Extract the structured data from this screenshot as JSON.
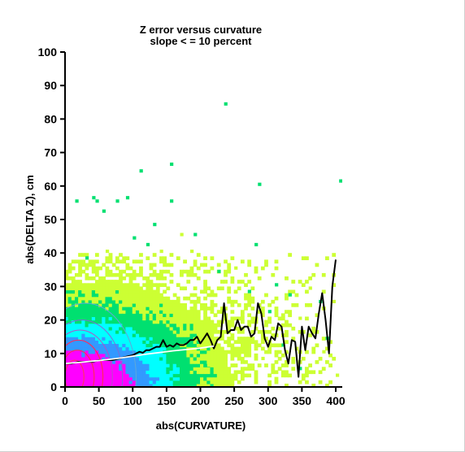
{
  "chart_data": {
    "type": "heatmap",
    "title": "Z error versus curvature",
    "subtitle": "slope < = 10 percent",
    "xlabel": "abs(CURVATURE)",
    "ylabel": "abs(DELTA Z), cm",
    "xlim": [
      0,
      400
    ],
    "ylim": [
      0,
      100
    ],
    "x_ticks": [
      "0",
      "50",
      "100",
      "150",
      "200",
      "250",
      "300",
      "350",
      "400"
    ],
    "y_ticks": [
      "0",
      "10",
      "20",
      "30",
      "40",
      "50",
      "60",
      "70",
      "80",
      "90",
      "100"
    ],
    "grid": false,
    "colormap": [
      "#ff00ff",
      "#3399ff",
      "#00ffff",
      "#00e070",
      "#ccff33"
    ],
    "series": [
      {
        "type": "line",
        "color": "#000000",
        "x": [
          0,
          10,
          20,
          30,
          40,
          50,
          60,
          70,
          80,
          90,
          100,
          105,
          110,
          115,
          120,
          125,
          130,
          135,
          140,
          145,
          150,
          155,
          160,
          165,
          170,
          175,
          180,
          185,
          190,
          195,
          200,
          205,
          210,
          215,
          220,
          225,
          230,
          235,
          240,
          245,
          250,
          255,
          260,
          265,
          270,
          275,
          280,
          285,
          290,
          295,
          300,
          305,
          310,
          315,
          320,
          325,
          330,
          335,
          340,
          345,
          350,
          355,
          360,
          365,
          370,
          375,
          380,
          385,
          390,
          395,
          400
        ],
        "values": [
          7,
          7,
          7.5,
          7.5,
          7.5,
          8,
          8,
          8,
          8.5,
          9,
          9.5,
          10,
          10.5,
          10.2,
          11,
          11,
          11.5,
          12,
          12,
          14,
          12,
          12.5,
          12,
          13,
          12.5,
          12.5,
          13,
          14,
          14,
          15,
          13,
          14.5,
          16,
          14,
          11.5,
          14,
          15,
          25,
          16,
          17,
          17,
          20,
          17,
          18,
          18,
          15,
          16,
          25,
          22,
          14.5,
          12,
          15,
          14,
          19,
          18,
          11,
          7,
          14,
          13.5,
          3,
          18,
          11,
          18,
          16,
          14.5,
          22,
          28,
          20,
          10,
          30,
          38
        ]
      },
      {
        "type": "line",
        "color": "#ffffff",
        "x": [
          0,
          20,
          40,
          60,
          80,
          100,
          120,
          140,
          160,
          180,
          200,
          220
        ],
        "values": [
          7,
          7.3,
          7.7,
          8.1,
          8.6,
          9.2,
          9.8,
          10.3,
          10.8,
          11.2,
          11.6,
          12.2
        ]
      }
    ]
  }
}
